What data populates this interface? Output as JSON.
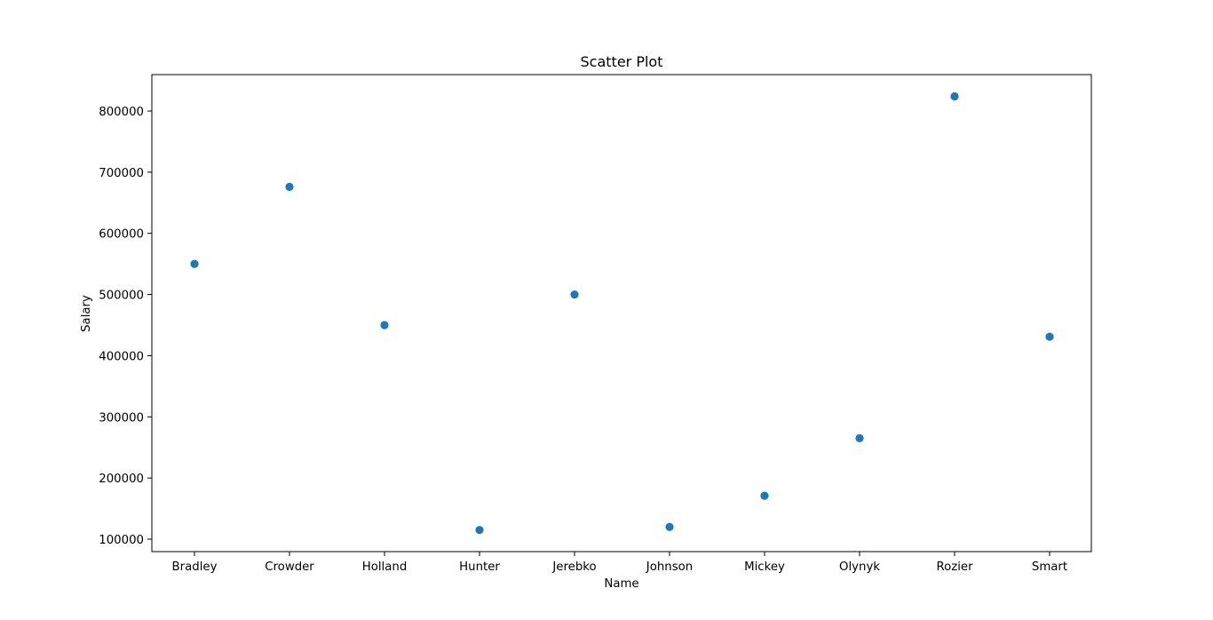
{
  "chart_data": {
    "type": "scatter",
    "title": "Scatter Plot",
    "xlabel": "Name",
    "ylabel": "Salary",
    "categories": [
      "Bradley",
      "Crowder",
      "Holland",
      "Hunter",
      "Jerebko",
      "Johnson",
      "Mickey",
      "Olynyk",
      "Rozier",
      "Smart"
    ],
    "series": [
      {
        "values": [
          550000,
          676000,
          450000,
          115000,
          500000,
          120000,
          171000,
          265000,
          824000,
          431000
        ]
      }
    ],
    "ylim": [
      80000,
      860000
    ],
    "yticks": [
      100000,
      200000,
      300000,
      400000,
      500000,
      600000,
      700000,
      800000
    ],
    "ytick_labels": [
      "100000",
      "200000",
      "300000",
      "400000",
      "500000",
      "600000",
      "700000",
      "800000"
    ],
    "grid": false,
    "legend": "none",
    "marker_color": "#1f77b4"
  }
}
